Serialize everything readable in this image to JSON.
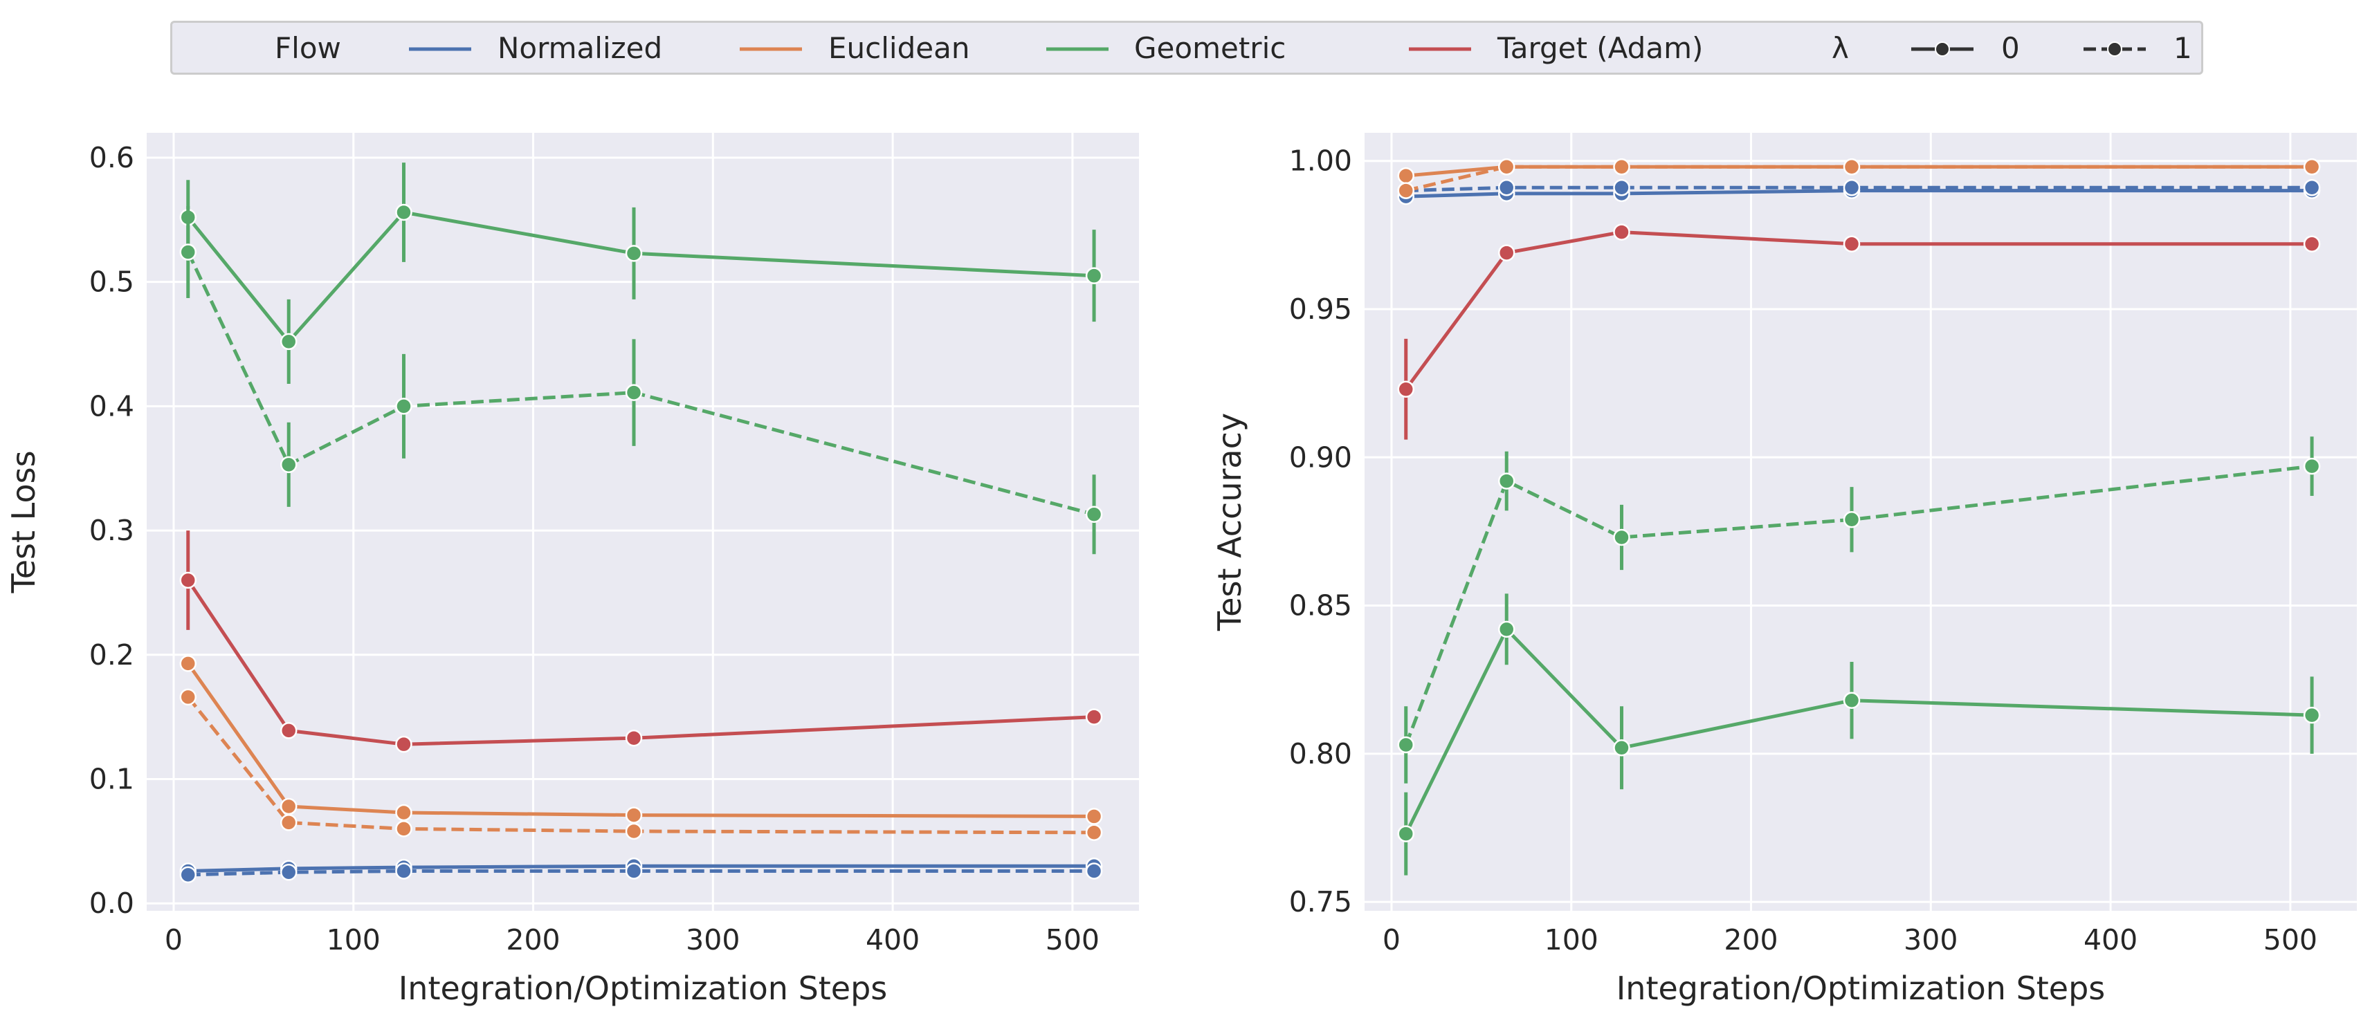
{
  "legend": {
    "flow_title": "Flow",
    "normalized": "Normalized",
    "euclidean": "Euclidean",
    "geometric": "Geometric",
    "target": "Target (Adam)",
    "lambda_title": "λ",
    "lambda0": "0",
    "lambda1": "1"
  },
  "colors": {
    "background": "#eaeaf2",
    "grid": "#ffffff",
    "Normalized": "#4c72b0",
    "Euclidean": "#dd8452",
    "Geometric": "#55a868",
    "Target (Adam)": "#c44e52"
  },
  "chart_data": [
    {
      "type": "line",
      "xlabel": "Integration/Optimization Steps",
      "ylabel": "Test Loss",
      "x": [
        8,
        64,
        128,
        256,
        512
      ],
      "xlim": [
        -15,
        537
      ],
      "ylim": [
        -0.006,
        0.62
      ],
      "xticks": [
        0,
        100,
        200,
        300,
        400,
        500
      ],
      "yticks": [
        0.0,
        0.1,
        0.2,
        0.3,
        0.4,
        0.5,
        0.6
      ],
      "ytick_labels": [
        "0.0",
        "0.1",
        "0.2",
        "0.3",
        "0.4",
        "0.5",
        "0.6"
      ],
      "grid": true,
      "series": [
        {
          "name": "Normalized",
          "lambda": "0",
          "values": [
            0.026,
            0.028,
            0.029,
            0.03,
            0.03
          ],
          "err": [
            0.002,
            0.002,
            0.002,
            0.002,
            0.002
          ]
        },
        {
          "name": "Normalized",
          "lambda": "1",
          "values": [
            0.023,
            0.025,
            0.026,
            0.026,
            0.026
          ],
          "err": [
            0.002,
            0.002,
            0.002,
            0.002,
            0.002
          ]
        },
        {
          "name": "Euclidean",
          "lambda": "0",
          "values": [
            0.193,
            0.078,
            0.073,
            0.071,
            0.07
          ],
          "err": [
            0.004,
            0.003,
            0.003,
            0.003,
            0.003
          ]
        },
        {
          "name": "Euclidean",
          "lambda": "1",
          "values": [
            0.166,
            0.065,
            0.06,
            0.058,
            0.057
          ],
          "err": [
            0.004,
            0.003,
            0.003,
            0.003,
            0.003
          ]
        },
        {
          "name": "Geometric",
          "lambda": "0",
          "values": [
            0.552,
            0.452,
            0.556,
            0.523,
            0.505
          ],
          "err": [
            0.03,
            0.034,
            0.04,
            0.037,
            0.037
          ]
        },
        {
          "name": "Geometric",
          "lambda": "1",
          "values": [
            0.524,
            0.353,
            0.4,
            0.411,
            0.313
          ],
          "err": [
            0.037,
            0.034,
            0.042,
            0.043,
            0.032
          ]
        },
        {
          "name": "Target (Adam)",
          "lambda": "0",
          "values": [
            0.26,
            0.139,
            0.128,
            0.133,
            0.15
          ],
          "err": [
            0.04,
            0.004,
            0.003,
            0.003,
            0.003
          ]
        }
      ]
    },
    {
      "type": "line",
      "xlabel": "Integration/Optimization Steps",
      "ylabel": "Test Accuracy",
      "x": [
        8,
        64,
        128,
        256,
        512
      ],
      "xlim": [
        -15,
        537
      ],
      "ylim": [
        0.747,
        1.0095
      ],
      "xticks": [
        0,
        100,
        200,
        300,
        400,
        500
      ],
      "yticks": [
        0.75,
        0.8,
        0.85,
        0.9,
        0.95,
        1.0
      ],
      "ytick_labels": [
        "0.75",
        "0.80",
        "0.85",
        "0.90",
        "0.95",
        "1.00"
      ],
      "grid": true,
      "series": [
        {
          "name": "Normalized",
          "lambda": "0",
          "values": [
            0.988,
            0.989,
            0.989,
            0.99,
            0.99
          ],
          "err": [
            0.001,
            0.001,
            0.001,
            0.001,
            0.001
          ]
        },
        {
          "name": "Normalized",
          "lambda": "1",
          "values": [
            0.99,
            0.991,
            0.991,
            0.991,
            0.991
          ],
          "err": [
            0.001,
            0.001,
            0.001,
            0.001,
            0.001
          ]
        },
        {
          "name": "Euclidean",
          "lambda": "0",
          "values": [
            0.995,
            0.998,
            0.998,
            0.998,
            0.998
          ],
          "err": [
            0.001,
            0.001,
            0.001,
            0.001,
            0.001
          ]
        },
        {
          "name": "Euclidean",
          "lambda": "1",
          "values": [
            0.99,
            0.998,
            0.998,
            0.998,
            0.998
          ],
          "err": [
            0.001,
            0.001,
            0.001,
            0.001,
            0.001
          ]
        },
        {
          "name": "Geometric",
          "lambda": "0",
          "values": [
            0.773,
            0.842,
            0.802,
            0.818,
            0.813
          ],
          "err": [
            0.014,
            0.012,
            0.014,
            0.013,
            0.013
          ]
        },
        {
          "name": "Geometric",
          "lambda": "1",
          "values": [
            0.803,
            0.892,
            0.873,
            0.879,
            0.897
          ],
          "err": [
            0.013,
            0.01,
            0.011,
            0.011,
            0.01
          ]
        },
        {
          "name": "Target (Adam)",
          "lambda": "0",
          "values": [
            0.923,
            0.969,
            0.976,
            0.972,
            0.972
          ],
          "err": [
            0.017,
            0.001,
            0.001,
            0.001,
            0.001
          ]
        }
      ]
    }
  ]
}
